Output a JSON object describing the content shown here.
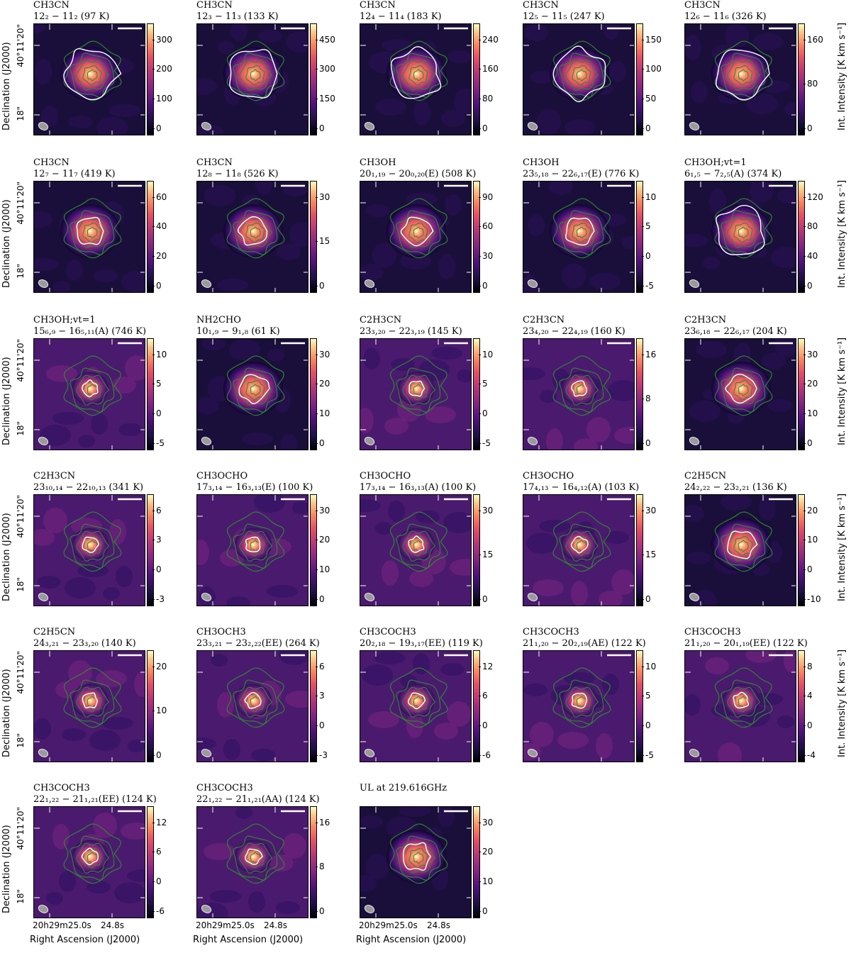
{
  "figure": {
    "y_axis_title": "Declination (J2000)",
    "y_tick_top": "40°11'20\"",
    "y_tick_bottom": "18\"",
    "x_axis_title": "Right Ascension (J2000)",
    "x_tick_left": "20h29m25.0s",
    "x_tick_right": "24.8s",
    "colorbar_title": "Int. Intensity [K km s⁻¹]",
    "colormap": "magma",
    "contour_colors": {
      "green": "#2e8b2e",
      "white": "#ffffff"
    },
    "beam_color": "#9a9a9a"
  },
  "chart_data": [
    {
      "type": "heatmap",
      "molecule": "CH3CN",
      "transition": "12₂ − 11₂ (97 K)",
      "colorbar_ticks": [
        0,
        100,
        200,
        300
      ]
    },
    {
      "type": "heatmap",
      "molecule": "CH3CN",
      "transition": "12₃ − 11₃ (133 K)",
      "colorbar_ticks": [
        0,
        150,
        300,
        450
      ]
    },
    {
      "type": "heatmap",
      "molecule": "CH3CN",
      "transition": "12₄ − 11₄ (183 K)",
      "colorbar_ticks": [
        0,
        80,
        160,
        240
      ]
    },
    {
      "type": "heatmap",
      "molecule": "CH3CN",
      "transition": "12₅ − 11₅ (247 K)",
      "colorbar_ticks": [
        0,
        50,
        100,
        150
      ]
    },
    {
      "type": "heatmap",
      "molecule": "CH3CN",
      "transition": "12₆ − 11₆ (326 K)",
      "colorbar_ticks": [
        0,
        80,
        160
      ]
    },
    {
      "type": "heatmap",
      "molecule": "CH3CN",
      "transition": "12₇ − 11₇ (419 K)",
      "colorbar_ticks": [
        0,
        20,
        40,
        60
      ]
    },
    {
      "type": "heatmap",
      "molecule": "CH3CN",
      "transition": "12₈ − 11₈ (526 K)",
      "colorbar_ticks": [
        0,
        15,
        30
      ]
    },
    {
      "type": "heatmap",
      "molecule": "CH3OH",
      "transition": "20₁,₁₉ − 20₀,₂₀(E) (508 K)",
      "colorbar_ticks": [
        0,
        30,
        60,
        90
      ]
    },
    {
      "type": "heatmap",
      "molecule": "CH3OH",
      "transition": "23₅,₁₈ − 22₆,₁₇(E) (776 K)",
      "colorbar_ticks": [
        -5,
        0,
        5,
        10
      ]
    },
    {
      "type": "heatmap",
      "molecule": "CH3OH;vt=1",
      "transition": "6₁,₅ − 7₂,₅(A) (374 K)",
      "colorbar_ticks": [
        0,
        40,
        80,
        120
      ]
    },
    {
      "type": "heatmap",
      "molecule": "CH3OH;vt=1",
      "transition": "15₆,₉ − 16₅,₁₁(A) (746 K)",
      "colorbar_ticks": [
        -5,
        0,
        5,
        10
      ]
    },
    {
      "type": "heatmap",
      "molecule": "NH2CHO",
      "transition": "10₁,₉ − 9₁,₈ (61 K)",
      "colorbar_ticks": [
        0,
        10,
        20,
        30
      ]
    },
    {
      "type": "heatmap",
      "molecule": "C2H3CN",
      "transition": "23₃,₂₀ − 22₃,₁₉ (145 K)",
      "colorbar_ticks": [
        -5,
        0,
        5,
        10
      ]
    },
    {
      "type": "heatmap",
      "molecule": "C2H3CN",
      "transition": "23₄,₂₀ − 22₄,₁₉ (160 K)",
      "colorbar_ticks": [
        0,
        8,
        16
      ]
    },
    {
      "type": "heatmap",
      "molecule": "C2H3CN",
      "transition": "23₆,₁₈ − 22₆,₁₇ (204 K)",
      "colorbar_ticks": [
        0,
        10,
        20,
        30
      ]
    },
    {
      "type": "heatmap",
      "molecule": "C2H3CN",
      "transition": "23₁₀,₁₄ − 22₁₀,₁₃ (341 K)",
      "colorbar_ticks": [
        -3,
        0,
        3,
        6
      ]
    },
    {
      "type": "heatmap",
      "molecule": "CH3OCHO",
      "transition": "17₃,₁₄ − 16₃,₁₃(E) (100 K)",
      "colorbar_ticks": [
        0,
        10,
        20,
        30
      ]
    },
    {
      "type": "heatmap",
      "molecule": "CH3OCHO",
      "transition": "17₃,₁₄ − 16₃,₁₃(A) (100 K)",
      "colorbar_ticks": [
        0,
        15,
        30
      ]
    },
    {
      "type": "heatmap",
      "molecule": "CH3OCHO",
      "transition": "17₄,₁₃ − 16₄,₁₂(A) (103 K)",
      "colorbar_ticks": [
        0,
        15,
        30
      ]
    },
    {
      "type": "heatmap",
      "molecule": "C2H5CN",
      "transition": "24₂,₂₂ − 23₂,₂₁ (136 K)",
      "colorbar_ticks": [
        -10,
        0,
        10,
        20
      ]
    },
    {
      "type": "heatmap",
      "molecule": "C2H5CN",
      "transition": "24₃,₂₁ − 23₃,₂₀ (140 K)",
      "colorbar_ticks": [
        0,
        10,
        20
      ]
    },
    {
      "type": "heatmap",
      "molecule": "CH3OCH3",
      "transition": "23₃,₂₁ − 23₂,₂₂(EE) (264 K)",
      "colorbar_ticks": [
        -3,
        0,
        3,
        6
      ]
    },
    {
      "type": "heatmap",
      "molecule": "CH3COCH3",
      "transition": "20₂,₁₈ − 19₃,₁₇(EE) (119 K)",
      "colorbar_ticks": [
        -6,
        0,
        6,
        12
      ]
    },
    {
      "type": "heatmap",
      "molecule": "CH3COCH3",
      "transition": "21₁,₂₀ − 20₂,₁₉(AE) (122 K)",
      "colorbar_ticks": [
        -5,
        0,
        5,
        10
      ]
    },
    {
      "type": "heatmap",
      "molecule": "CH3COCH3",
      "transition": "21₁,₂₀ − 20₁,₁₉(EE) (122 K)",
      "colorbar_ticks": [
        -4,
        0,
        4,
        8
      ]
    },
    {
      "type": "heatmap",
      "molecule": "CH3COCH3",
      "transition": "22₁,₂₂ − 21₁,₂₁(EE) (124 K)",
      "colorbar_ticks": [
        -6,
        0,
        6,
        12
      ]
    },
    {
      "type": "heatmap",
      "molecule": "CH3COCH3",
      "transition": "22₁,₂₂ − 21₁,₂₁(AA) (124 K)",
      "colorbar_ticks": [
        0,
        8,
        16
      ]
    },
    {
      "type": "heatmap",
      "molecule": "UL at 219.616GHz",
      "transition": "",
      "colorbar_ticks": [
        0,
        10,
        20,
        30
      ]
    }
  ]
}
